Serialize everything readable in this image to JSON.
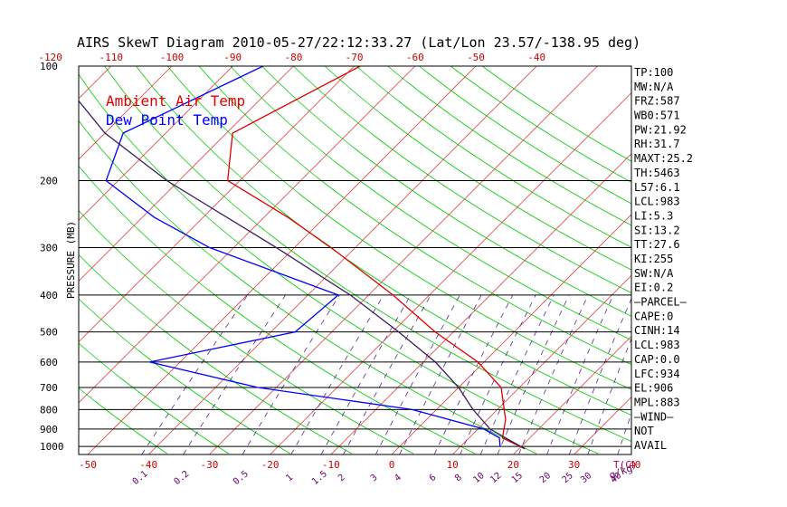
{
  "chart_data": {
    "type": "line",
    "title": "AIRS SkewT Diagram 2010-05-27/22:12:33.27 (Lat/Lon 23.57/-138.95 deg)",
    "ylabel": "PRESSURE (MB)",
    "xlabel": "T(C)",
    "mixing_ratio_label": "g/kg",
    "y_scale": "log",
    "ylim": [
      1050,
      100
    ],
    "xlim_bottom": [
      -52,
      45
    ],
    "y_ticks": [
      100,
      200,
      300,
      400,
      500,
      600,
      700,
      800,
      900,
      1000
    ],
    "top_ticks": [
      -120,
      -110,
      -100,
      -90,
      -80,
      -70,
      -60,
      -50,
      -40
    ],
    "bottom_ticks": [
      -50,
      -40,
      -30,
      -20,
      -10,
      0,
      10,
      20,
      30,
      40
    ],
    "mixing_ratio_ticks": [
      "0.1",
      "0.2",
      "0.5",
      "1",
      "1.5",
      "2",
      "3",
      "4",
      "6",
      "8",
      "10",
      "12",
      "15",
      "20",
      "25",
      "30",
      "40"
    ],
    "legend": [
      {
        "name": "Ambient Air Temp",
        "color": "#e00000"
      },
      {
        "name": "Dew Point Temp",
        "color": "#0000ff"
      }
    ],
    "series": [
      {
        "name": "Ambient Air Temp",
        "color": "#e00000",
        "points": [
          {
            "p": 100,
            "t": -69
          },
          {
            "p": 150,
            "t": -79
          },
          {
            "p": 200,
            "t": -72
          },
          {
            "p": 250,
            "t": -56
          },
          {
            "p": 300,
            "t": -44
          },
          {
            "p": 400,
            "t": -26
          },
          {
            "p": 500,
            "t": -13
          },
          {
            "p": 600,
            "t": -1
          },
          {
            "p": 700,
            "t": 7
          },
          {
            "p": 850,
            "t": 13
          },
          {
            "p": 950,
            "t": 15.5
          },
          {
            "p": 1015,
            "t": 21
          }
        ]
      },
      {
        "name": "Dew Point Temp",
        "color": "#0000ff",
        "points": [
          {
            "p": 100,
            "t": -85
          },
          {
            "p": 150,
            "t": -97
          },
          {
            "p": 200,
            "t": -92
          },
          {
            "p": 250,
            "t": -78
          },
          {
            "p": 300,
            "t": -64
          },
          {
            "p": 400,
            "t": -35
          },
          {
            "p": 500,
            "t": -36
          },
          {
            "p": 600,
            "t": -55
          },
          {
            "p": 700,
            "t": -33
          },
          {
            "p": 800,
            "t": -4
          },
          {
            "p": 900,
            "t": 11
          },
          {
            "p": 950,
            "t": 15
          },
          {
            "p": 1000,
            "t": 16.5
          }
        ]
      },
      {
        "name": "Parcel",
        "color": "#3a1a5a",
        "points": [
          {
            "p": 1015,
            "t": 21
          },
          {
            "p": 900,
            "t": 12
          },
          {
            "p": 800,
            "t": 6
          },
          {
            "p": 700,
            "t": 0
          },
          {
            "p": 600,
            "t": -8
          },
          {
            "p": 500,
            "t": -19
          },
          {
            "p": 400,
            "t": -33
          },
          {
            "p": 300,
            "t": -53
          },
          {
            "p": 200,
            "t": -82
          },
          {
            "p": 150,
            "t": -100
          },
          {
            "p": 100,
            "t": -120
          }
        ]
      }
    ],
    "indices": [
      "TP:100",
      "MW:N/A",
      "FRZ:587",
      "WB0:571",
      "PW:21.92",
      "RH:31.7",
      "MAXT:25.2",
      "TH:5463",
      "L57:6.1",
      "LCL:983",
      "LI:5.3",
      "SI:13.2",
      "TT:27.6",
      "KI:255",
      "SW:N/A",
      "EI:0.2",
      "—PARCEL—",
      "CAPE:0",
      "CINH:14",
      "LCL:983",
      "CAP:0.0",
      "LFC:934",
      "EL:906",
      "MPL:883",
      "—WIND—",
      "NOT",
      "AVAIL"
    ],
    "grid": true
  }
}
